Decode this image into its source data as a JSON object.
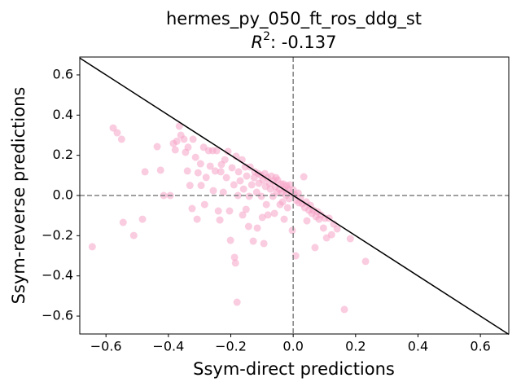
{
  "chart_data": {
    "type": "scatter",
    "title": "hermes_py_050_ft_ros_ddg_st",
    "subtitle": {
      "base": "R",
      "sup": "2",
      "rest": ": -0.137"
    },
    "xlabel": "Ssym-direct predictions",
    "ylabel": "Ssym-reverse predictions",
    "color": "#f5a3c7",
    "diagonal": true,
    "zero_lines": true,
    "xlim": [
      -0.684,
      0.691
    ],
    "ylim": [
      -0.689,
      0.689
    ],
    "xticks": [
      {
        "value": -0.6,
        "label": "−0.6"
      },
      {
        "value": -0.4,
        "label": "−0.4"
      },
      {
        "value": -0.2,
        "label": "−0.2"
      },
      {
        "value": 0,
        "label": "0.0"
      },
      0.2,
      0.4,
      0.6
    ],
    "yticks": [
      {
        "value": -0.6,
        "label": "−0.6"
      },
      {
        "value": -0.4,
        "label": "−0.4"
      },
      {
        "value": -0.2,
        "label": "−0.2"
      },
      {
        "value": 0,
        "label": "0.0"
      },
      0.2,
      0.4,
      0.6
    ],
    "x": [
      -0.644,
      -0.577,
      -0.564,
      -0.55,
      -0.545,
      -0.511,
      -0.483,
      -0.475,
      -0.436,
      -0.425,
      -0.415,
      -0.394,
      -0.384,
      -0.378,
      -0.373,
      -0.365,
      -0.36,
      -0.35,
      -0.345,
      -0.339,
      -0.337,
      -0.331,
      -0.324,
      -0.321,
      -0.313,
      -0.308,
      -0.305,
      -0.297,
      -0.295,
      -0.287,
      -0.284,
      -0.279,
      -0.271,
      -0.266,
      -0.258,
      -0.256,
      -0.25,
      -0.245,
      -0.24,
      -0.235,
      -0.232,
      -0.23,
      -0.224,
      -0.219,
      -0.214,
      -0.209,
      -0.204,
      -0.201,
      -0.196,
      -0.19,
      -0.188,
      -0.185,
      -0.183,
      -0.18,
      -0.177,
      -0.175,
      -0.17,
      -0.164,
      -0.162,
      -0.159,
      -0.154,
      -0.151,
      -0.149,
      -0.143,
      -0.141,
      -0.138,
      -0.133,
      -0.128,
      -0.125,
      -0.123,
      -0.117,
      -0.115,
      -0.112,
      -0.11,
      -0.104,
      -0.102,
      -0.099,
      -0.097,
      -0.094,
      -0.091,
      -0.089,
      -0.086,
      -0.083,
      -0.081,
      -0.076,
      -0.073,
      -0.07,
      -0.065,
      -0.063,
      -0.06,
      -0.057,
      -0.055,
      -0.052,
      -0.05,
      -0.044,
      -0.042,
      -0.039,
      -0.037,
      -0.034,
      -0.031,
      -0.029,
      -0.026,
      -0.023,
      -0.021,
      -0.018,
      -0.016,
      -0.013,
      -0.01,
      -0.005,
      -0.003,
      0.0,
      0.005,
      0.008,
      0.01,
      0.016,
      0.018,
      0.023,
      0.029,
      0.034,
      0.037,
      0.042,
      0.044,
      0.05,
      0.055,
      0.06,
      0.065,
      0.07,
      0.073,
      0.078,
      0.083,
      0.089,
      0.097,
      0.102,
      0.107,
      0.115,
      0.123,
      0.13,
      0.141,
      0.164,
      0.183,
      0.232
    ],
    "values": [
      -0.255,
      0.336,
      0.312,
      0.28,
      -0.134,
      -0.199,
      -0.118,
      0.118,
      0.243,
      0.126,
      0.0,
      0.0,
      0.259,
      0.227,
      0.27,
      0.345,
      0.3,
      0.28,
      0.215,
      0.122,
      0.24,
      0.05,
      -0.065,
      0.28,
      0.19,
      -0.118,
      0.113,
      0.158,
      0.05,
      0.24,
      -0.045,
      0.09,
      0.223,
      0.146,
      0.223,
      0.024,
      0.122,
      0.223,
      -0.077,
      -0.122,
      0.118,
      0.154,
      0.016,
      0.178,
      0.089,
      0.219,
      -0.077,
      -0.223,
      0.138,
      0.053,
      -0.308,
      -0.336,
      0.195,
      -0.531,
      0.0,
      0.118,
      0.073,
      0.178,
      -0.097,
      0.032,
      0.142,
      -0.069,
      0.097,
      -0.154,
      -0.004,
      0.142,
      0.053,
      -0.227,
      0.089,
      0.118,
      0.016,
      -0.162,
      0.109,
      0.061,
      0.101,
      -0.004,
      -0.109,
      0.077,
      -0.239,
      0.109,
      0.045,
      -0.045,
      0.089,
      -0.097,
      0.061,
      0.032,
      0.097,
      -0.004,
      0.073,
      -0.089,
      0.045,
      0.089,
      0.016,
      0.077,
      0.032,
      -0.045,
      0.057,
      0.012,
      -0.032,
      0.057,
      -0.118,
      0.028,
      0.0,
      0.049,
      -0.061,
      0.032,
      -0.016,
      0.053,
      0.012,
      -0.174,
      0.028,
      0.004,
      -0.3,
      -0.024,
      0.012,
      -0.036,
      -0.012,
      -0.041,
      0.093,
      -0.061,
      -0.032,
      -0.126,
      -0.073,
      -0.049,
      -0.089,
      -0.073,
      -0.259,
      -0.105,
      -0.081,
      -0.118,
      -0.097,
      -0.162,
      -0.113,
      -0.211,
      -0.113,
      -0.195,
      -0.142,
      -0.166,
      -0.567,
      -0.215,
      -0.328
    ]
  }
}
